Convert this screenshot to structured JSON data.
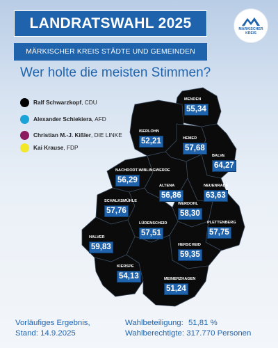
{
  "header": {
    "title": "LANDRATSWAHL 2025",
    "subtitle": "MÄRKISCHER KREIS STÄDTE UND GEMEINDEN",
    "question": "Wer holte die meisten Stimmen?"
  },
  "logo": {
    "line1": "MÄRKISCHER",
    "line2": "KREIS"
  },
  "legend": [
    {
      "name": "Ralf Schwarzkopf",
      "party": "CDU",
      "color": "#000000"
    },
    {
      "name": "Alexander Schiekiera",
      "party": "AFD",
      "color": "#19a3d9"
    },
    {
      "name": "Christian M.-J. Kißler",
      "party": "DIE LINKE",
      "color": "#8c1a5e"
    },
    {
      "name": "Kai Krause",
      "party": "FDP",
      "color": "#f2e82a"
    }
  ],
  "regions": [
    {
      "name": "MENDEN",
      "value": "55,34"
    },
    {
      "name": "ISERLOHN",
      "value": "52,21"
    },
    {
      "name": "HEMER",
      "value": "57,68"
    },
    {
      "name": "BALVE",
      "value": "64,27"
    },
    {
      "name": "NACHRODT-WIBLINGWERDE",
      "value": "56,29"
    },
    {
      "name": "ALTENA",
      "value": "56,86"
    },
    {
      "name": "NEUENRADE",
      "value": "63,63"
    },
    {
      "name": "WERDOHL",
      "value": "58,30"
    },
    {
      "name": "SCHALKSMÜHLE",
      "value": "57,76"
    },
    {
      "name": "LÜDENSCHEID",
      "value": "57,51"
    },
    {
      "name": "PLETTENBERG",
      "value": "57,75"
    },
    {
      "name": "HALVER",
      "value": "59,83"
    },
    {
      "name": "HERSCHEID",
      "value": "59,35"
    },
    {
      "name": "KIERSPE",
      "value": "54,13"
    },
    {
      "name": "MEINERZHAGEN",
      "value": "51,24"
    }
  ],
  "footer": {
    "result_line1": "Vorläufiges Ergebnis,",
    "result_line2": "Stand: 14.9.2025",
    "turnout_label": "Wahlbeteiligung:",
    "turnout_value": "51,81 %",
    "voters_label": "Wahlberechtigte:",
    "voters_value": "317.770 Personen"
  }
}
